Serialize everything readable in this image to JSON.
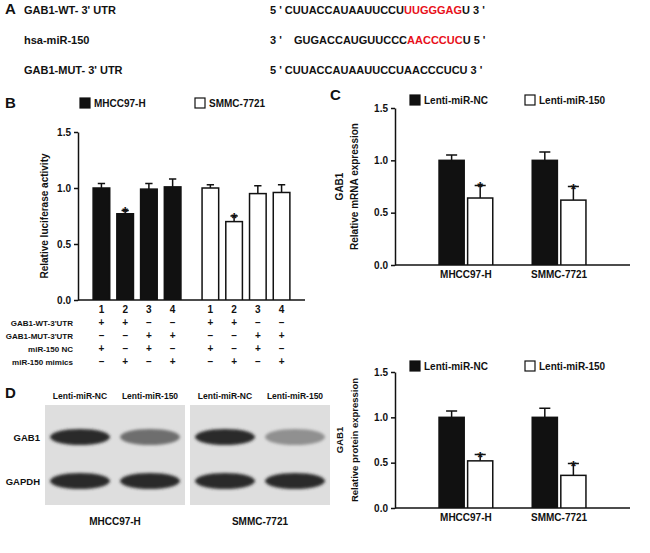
{
  "panel_a": {
    "label": "A",
    "rows": [
      {
        "name": "GAB1-WT- 3' UTR",
        "segments": [
          {
            "text": "5 ' CUUACCAUAAUUCCU"
          },
          {
            "text": "UUGGGAG",
            "color": "#e8101a"
          },
          {
            "text": "U 3 '"
          }
        ]
      },
      {
        "name": "hsa-miR-150",
        "segments": [
          {
            "text": "3 '    GUGACCAUGUUCCC"
          },
          {
            "text": "AACCCUC",
            "color": "#e8101a"
          },
          {
            "text": "U 5 '"
          }
        ]
      },
      {
        "name": "GAB1-MUT- 3' UTR",
        "segments": [
          {
            "text": "5 ' CUUACCAUAAUUCCUAACCCUCU 3 '"
          }
        ]
      }
    ]
  },
  "chart_data": [
    {
      "type": "bar",
      "panel": "B",
      "y_label": "Relative luciferase activity",
      "categories": [
        "1",
        "2",
        "3",
        "4",
        "1",
        "2",
        "3",
        "4"
      ],
      "series": [
        {
          "name": "MHCC97-H",
          "color": "#111111",
          "values": [
            1.0,
            0.77,
            0.99,
            1.01,
            null,
            null,
            null,
            null
          ],
          "errors": [
            0.04,
            0.03,
            0.05,
            0.07,
            null,
            null,
            null,
            null
          ]
        },
        {
          "name": "SMMC-7721",
          "color": "#ffffff",
          "values": [
            null,
            null,
            null,
            null,
            1.0,
            0.7,
            0.95,
            0.96
          ],
          "errors": [
            null,
            null,
            null,
            null,
            0.03,
            0.05,
            0.07,
            0.07
          ]
        }
      ],
      "ylim": [
        0,
        1.5
      ],
      "yticks": [
        {
          "value": 0,
          "label": "0.0"
        },
        {
          "value": 0.5,
          "label": "0.5"
        },
        {
          "value": 1,
          "label": "1.0"
        },
        {
          "value": 1.5,
          "label": "1.5"
        }
      ],
      "annotations": [
        {
          "text": "*",
          "index": 1
        },
        {
          "text": "*",
          "index": 5
        }
      ],
      "conditions": [
        {
          "label": "GAB1-WT-3'UTR",
          "marks": [
            "+",
            "+",
            "–",
            "–",
            "+",
            "+",
            "–",
            "–"
          ]
        },
        {
          "label": "GAB1-MUT-3'UTR",
          "marks": [
            "–",
            "–",
            "+",
            "+",
            "–",
            "–",
            "+",
            "+"
          ]
        },
        {
          "label": "miR-150 NC",
          "marks": [
            "+",
            "–",
            "+",
            "–",
            "+",
            "–",
            "+",
            "–"
          ]
        },
        {
          "label": "miR-150 mimics",
          "marks": [
            "–",
            "+",
            "–",
            "+",
            "–",
            "+",
            "–",
            "+"
          ]
        }
      ]
    },
    {
      "type": "bar",
      "panel": "C",
      "y_label": [
        "GAB1",
        "Relative mRNA expression"
      ],
      "categories": [
        "MHCC97-H",
        "SMMC-7721"
      ],
      "series": [
        {
          "name": "Lenti-miR-NC",
          "color": "#111111",
          "values": [
            1.0,
            1.0
          ],
          "errors": [
            0.05,
            0.08
          ]
        },
        {
          "name": "Lenti-miR-150",
          "color": "#ffffff",
          "values": [
            0.64,
            0.62
          ],
          "errors": [
            0.12,
            0.13
          ]
        }
      ],
      "ylim": [
        0,
        1.5
      ],
      "yticks": [
        {
          "value": 0,
          "label": "0.0"
        },
        {
          "value": 0.5,
          "label": "0.5"
        },
        {
          "value": 1,
          "label": "1.0"
        },
        {
          "value": 1.5,
          "label": "1.5"
        }
      ],
      "annotations": [
        {
          "text": "*",
          "series": 1,
          "index": 0
        },
        {
          "text": "*",
          "series": 1,
          "index": 1
        }
      ]
    },
    {
      "type": "bar",
      "y_label": [
        "GAB1",
        "Relative protein expression"
      ],
      "categories": [
        "MHCC97-H",
        "SMMC-7721"
      ],
      "series": [
        {
          "name": "Lenti-miR-NC",
          "color": "#111111",
          "values": [
            1.0,
            1.0
          ],
          "errors": [
            0.07,
            0.1
          ]
        },
        {
          "name": "Lenti-miR-150",
          "color": "#ffffff",
          "values": [
            0.52,
            0.36
          ],
          "errors": [
            0.07,
            0.13
          ]
        }
      ],
      "ylim": [
        0,
        1.5
      ],
      "yticks": [
        {
          "value": 0,
          "label": "0.0"
        },
        {
          "value": 0.5,
          "label": "0.5"
        },
        {
          "value": 1,
          "label": "1.0"
        },
        {
          "value": 1.5,
          "label": "1.5"
        }
      ],
      "annotations": [
        {
          "text": "*",
          "series": 1,
          "index": 0
        },
        {
          "text": "*",
          "series": 1,
          "index": 1
        }
      ]
    }
  ],
  "blot": {
    "label": "D",
    "lanes": [
      "Lenti-miR-NC",
      "Lenti-miR-150",
      "Lenti-miR-NC",
      "Lenti-miR-150"
    ],
    "rows": [
      "GAB1",
      "GAPDH"
    ],
    "cell_lines": [
      "MHCC97-H",
      "SMMC-7721"
    ]
  }
}
